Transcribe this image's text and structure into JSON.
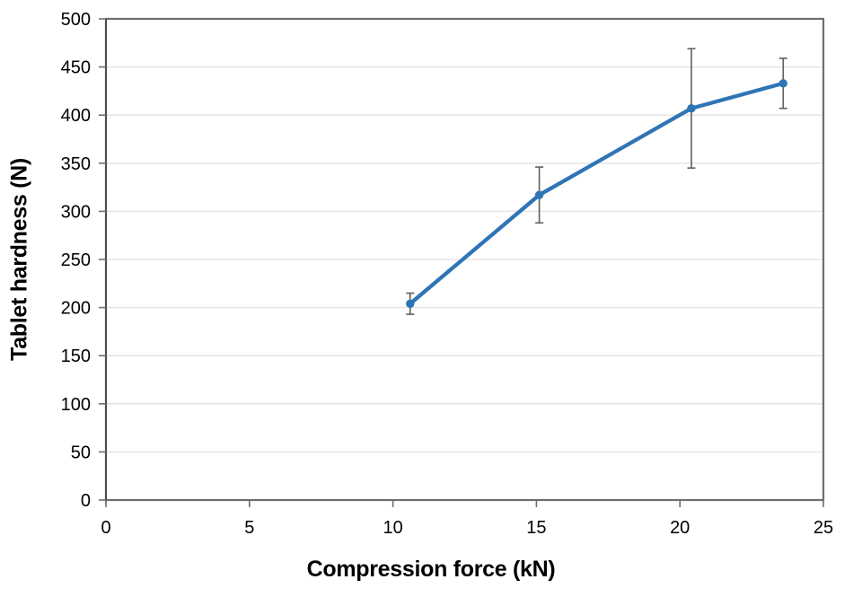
{
  "chart_data": {
    "type": "line",
    "title": "",
    "xlabel": "Compression force (kN)",
    "ylabel": "Tablet hardness (N)",
    "xlim": [
      0,
      25
    ],
    "ylim": [
      0,
      500
    ],
    "x_ticks": [
      0,
      5,
      10,
      15,
      20,
      25
    ],
    "y_ticks": [
      0,
      50,
      100,
      150,
      200,
      250,
      300,
      350,
      400,
      450,
      500
    ],
    "grid": "horizontal-only",
    "legend": "none",
    "series": [
      {
        "name": "Tablet hardness",
        "marker": "circle",
        "points": [
          {
            "x": 10.6,
            "y": 204,
            "err": 11
          },
          {
            "x": 15.1,
            "y": 317,
            "err": 29
          },
          {
            "x": 20.4,
            "y": 407,
            "err": 62
          },
          {
            "x": 23.6,
            "y": 433,
            "err": 26
          }
        ]
      }
    ],
    "colors": {
      "line": "#2E75B6",
      "marker": "#2E75B6",
      "error_bar": "#5F5F5F",
      "gridline": "#E2E2E2",
      "axis_border": "#6E6E6E",
      "y_axis_line": "#3A3A3A",
      "text": "#000000"
    }
  }
}
